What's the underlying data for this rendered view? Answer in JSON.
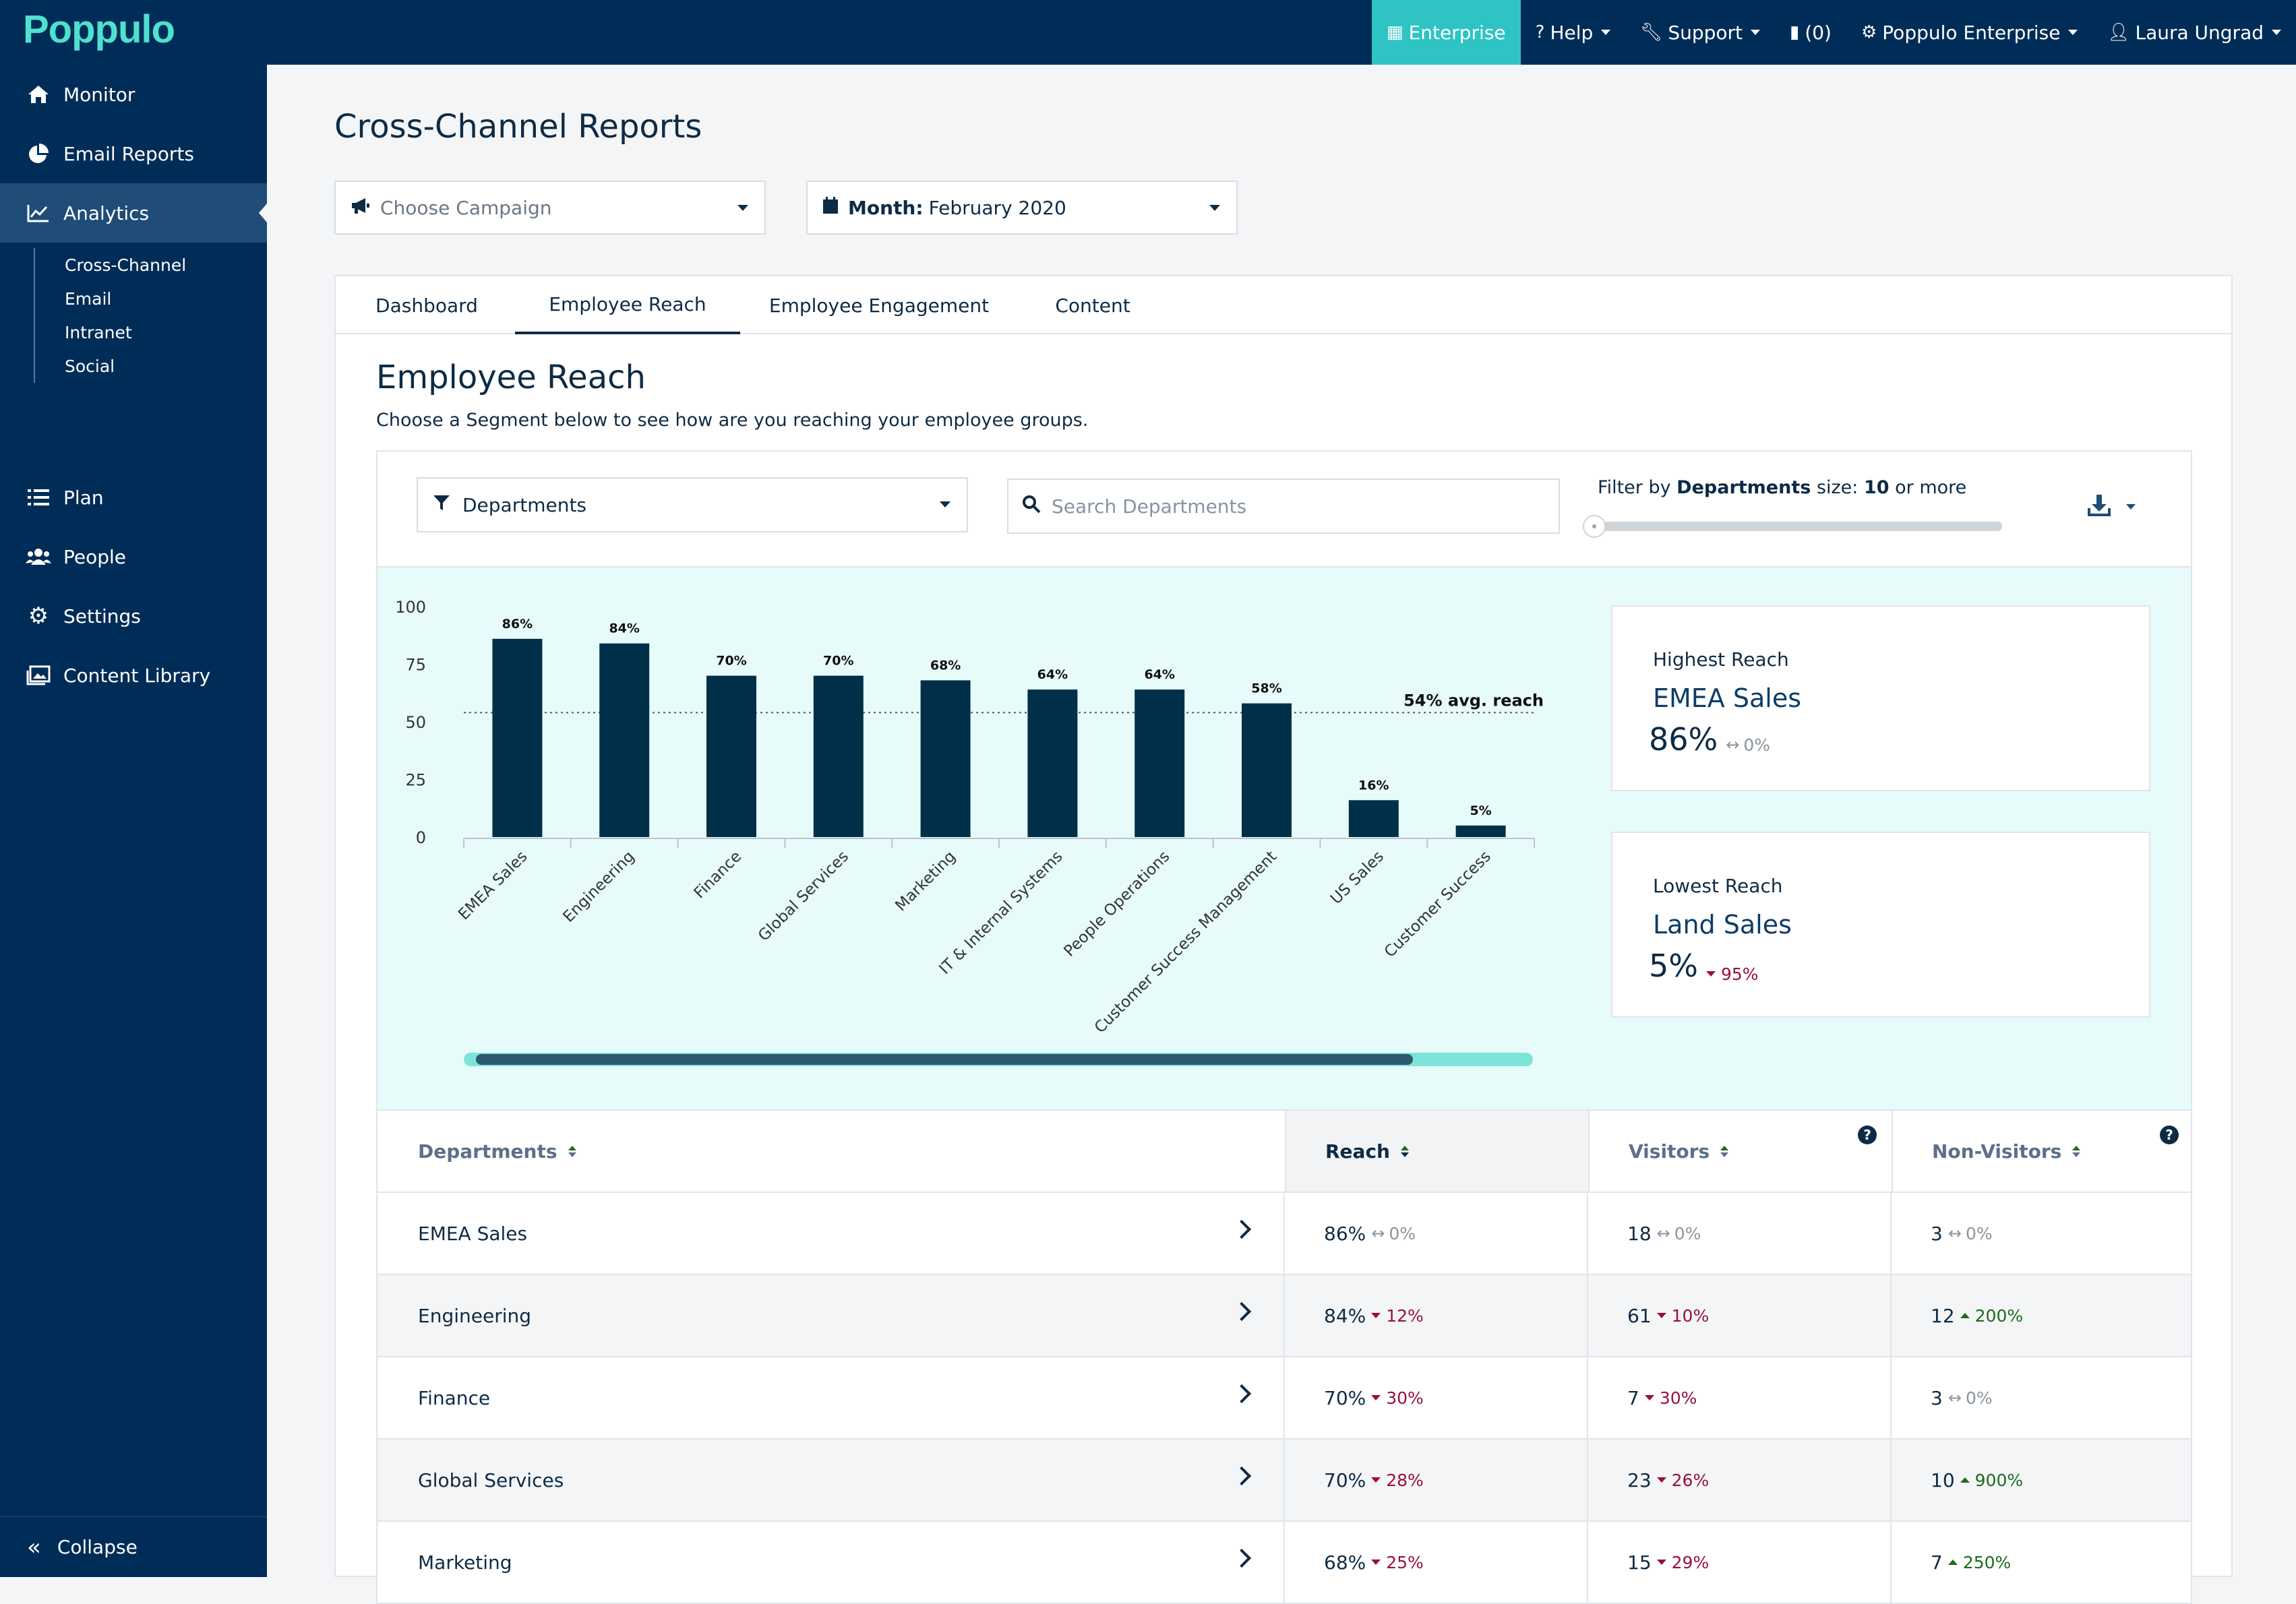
{
  "app": {
    "logo": "Poppulo",
    "topnav": {
      "enterprise": "Enterprise",
      "help": "Help",
      "support": "Support",
      "notifications": "(0)",
      "org": "Poppulo Enterprise",
      "user": "Laura Ungrad"
    }
  },
  "sidebar": {
    "monitor": "Monitor",
    "email_reports": "Email Reports",
    "analytics": "Analytics",
    "sub": [
      "Cross-Channel",
      "Email",
      "Intranet",
      "Social"
    ],
    "plan": "Plan",
    "people": "People",
    "settings": "Settings",
    "content_library": "Content Library",
    "collapse": "Collapse"
  },
  "page": {
    "title": "Cross-Channel Reports",
    "campaign_placeholder": "Choose Campaign",
    "month_label": "Month:",
    "month_value": "February 2020"
  },
  "tabs": [
    "Dashboard",
    "Employee Reach",
    "Employee Engagement",
    "Content"
  ],
  "section": {
    "title": "Employee Reach",
    "description": "Choose a Segment below to see how are you reaching your employee groups."
  },
  "filters": {
    "segment": "Departments",
    "search_placeholder": "Search Departments",
    "slider_prefix": "Filter by",
    "slider_segment": "Departments",
    "slider_mid": "size:",
    "slider_value": "10",
    "slider_suffix": "or more"
  },
  "chart_data": {
    "type": "bar",
    "categories": [
      "EMEA Sales",
      "Engineering",
      "Finance",
      "Global Services",
      "Marketing",
      "IT & Internal Systems",
      "People Operations",
      "Customer Success Management",
      "US Sales",
      "Customer Success"
    ],
    "values": [
      86,
      84,
      70,
      70,
      68,
      64,
      64,
      58,
      16,
      5
    ],
    "value_labels": [
      "86%",
      "84%",
      "70%",
      "70%",
      "68%",
      "64%",
      "64%",
      "58%",
      "16%",
      "5%"
    ],
    "yticks": [
      "100",
      "75",
      "50",
      "25",
      "0"
    ],
    "ylim": [
      0,
      100
    ],
    "average": 54,
    "average_label": "54% avg. reach",
    "bar_color": "#003049"
  },
  "highest": {
    "label": "Highest Reach",
    "name": "EMEA Sales",
    "value": "86%",
    "change": "0%"
  },
  "lowest": {
    "label": "Lowest Reach",
    "name": "Land Sales",
    "value": "5%",
    "change": "95%"
  },
  "table": {
    "headers": [
      "Departments",
      "Reach",
      "Visitors",
      "Non-Visitors"
    ],
    "rows": [
      {
        "name": "EMEA Sales",
        "reach": "86%",
        "reach_chg": "0%",
        "reach_dir": "flat",
        "visitors": "18",
        "visitors_chg": "0%",
        "visitors_dir": "flat",
        "non": "3",
        "non_chg": "0%",
        "non_dir": "flat"
      },
      {
        "name": "Engineering",
        "reach": "84%",
        "reach_chg": "12%",
        "reach_dir": "down",
        "visitors": "61",
        "visitors_chg": "10%",
        "visitors_dir": "down",
        "non": "12",
        "non_chg": "200%",
        "non_dir": "up"
      },
      {
        "name": "Finance",
        "reach": "70%",
        "reach_chg": "30%",
        "reach_dir": "down",
        "visitors": "7",
        "visitors_chg": "30%",
        "visitors_dir": "down",
        "non": "3",
        "non_chg": "0%",
        "non_dir": "flat"
      },
      {
        "name": "Global Services",
        "reach": "70%",
        "reach_chg": "28%",
        "reach_dir": "down",
        "visitors": "23",
        "visitors_chg": "26%",
        "visitors_dir": "down",
        "non": "10",
        "non_chg": "900%",
        "non_dir": "up"
      },
      {
        "name": "Marketing",
        "reach": "68%",
        "reach_chg": "25%",
        "reach_dir": "down",
        "visitors": "15",
        "visitors_chg": "29%",
        "visitors_dir": "down",
        "non": "7",
        "non_chg": "250%",
        "non_dir": "up"
      }
    ]
  }
}
